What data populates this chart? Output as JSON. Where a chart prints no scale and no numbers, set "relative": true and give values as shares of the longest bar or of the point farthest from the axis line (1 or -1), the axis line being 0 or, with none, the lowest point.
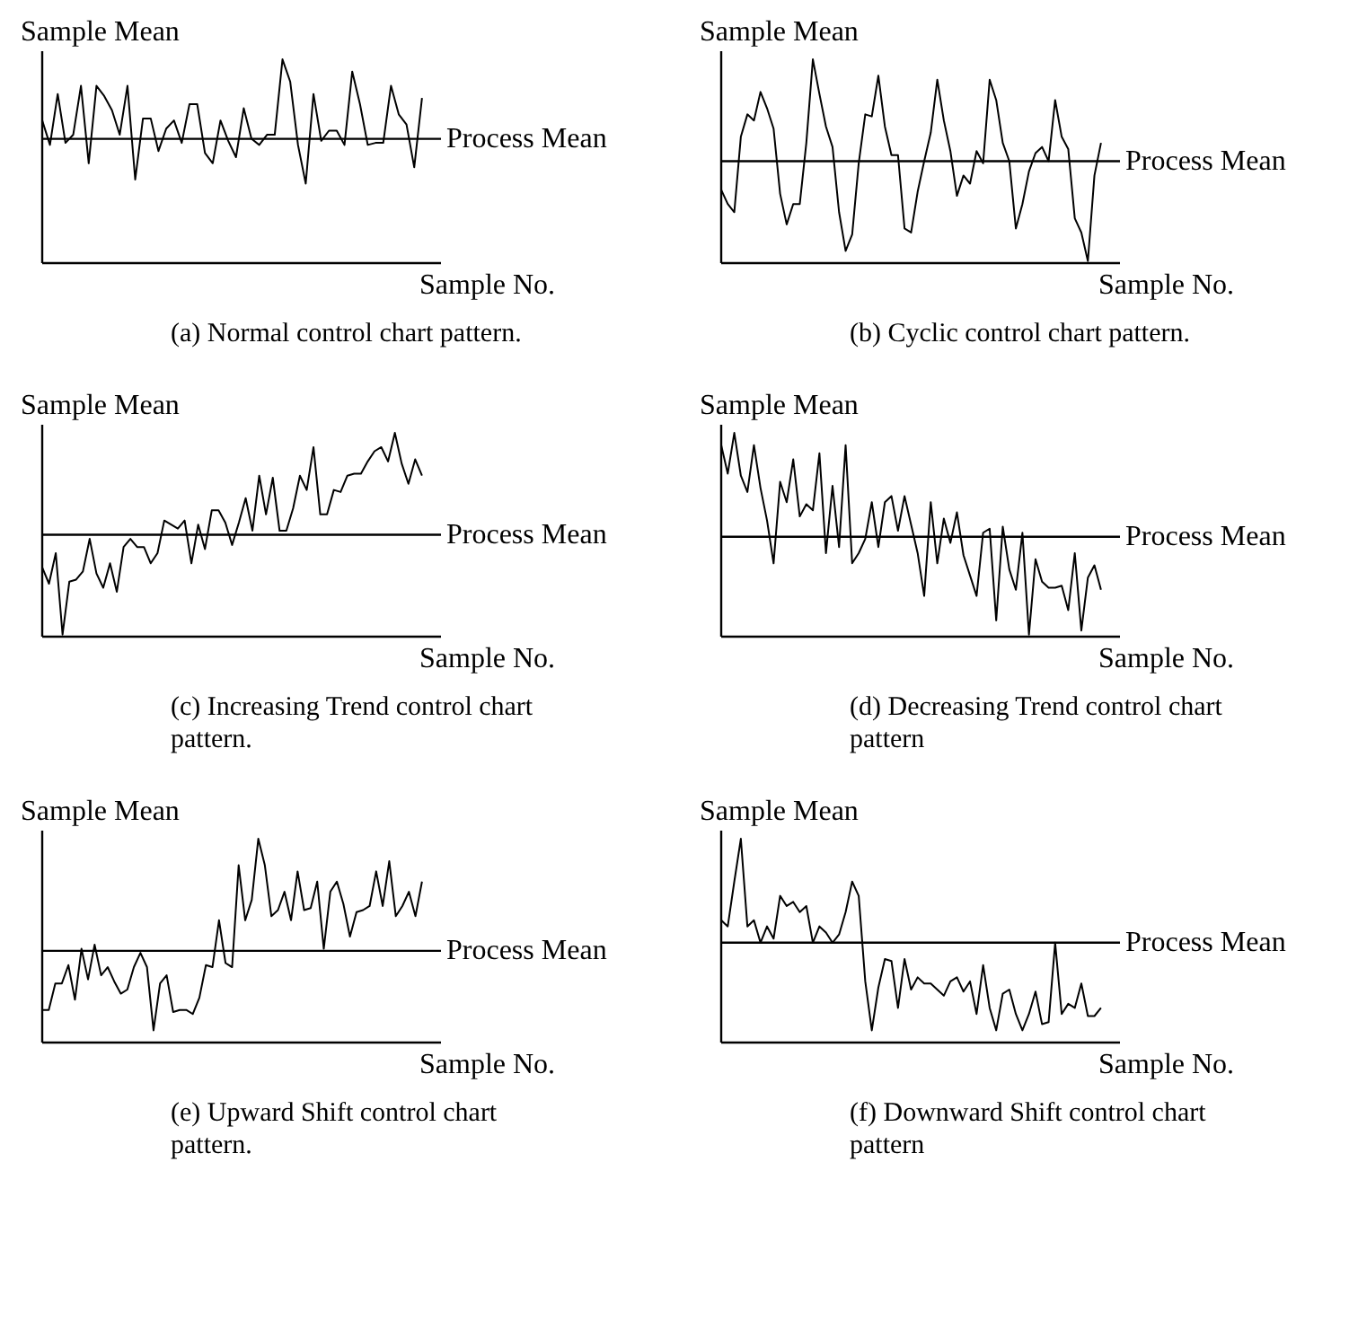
{
  "chart_data": [
    {
      "type": "line",
      "relative": true,
      "ylabel": "Sample Mean",
      "xlabel": "Sample No.",
      "annotations": [
        "(a) Normal control chart pattern."
      ],
      "categories": [
        null,
        null,
        null,
        null,
        null,
        null,
        null,
        null,
        null,
        null,
        null,
        null,
        null,
        null,
        null,
        null,
        null,
        null,
        null,
        null,
        null,
        null,
        null,
        null,
        null,
        null,
        null,
        null,
        null,
        null,
        null,
        null,
        null,
        null,
        null,
        null,
        null,
        null,
        null,
        null,
        null,
        null,
        null,
        null,
        null,
        null,
        null,
        null,
        null,
        null
      ],
      "series": [
        {
          "color": "#000000",
          "values": [
            0.7,
            0.58,
            0.83,
            0.59,
            0.63,
            0.87,
            0.49,
            0.87,
            0.82,
            0.75,
            0.63,
            0.87,
            0.41,
            0.71,
            0.71,
            0.55,
            0.66,
            0.7,
            0.59,
            0.78,
            0.78,
            0.54,
            0.49,
            0.7,
            0.6,
            0.52,
            0.76,
            0.61,
            0.58,
            0.63,
            0.63,
            1.0,
            0.89,
            0.58,
            0.39,
            0.83,
            0.6,
            0.65,
            0.65,
            0.58,
            0.94,
            0.78,
            0.58,
            0.59,
            0.59,
            0.87,
            0.73,
            0.68,
            0.47,
            0.81
          ]
        }
      ],
      "ref_lines": [
        {
          "axis": "y",
          "value": 0.61,
          "label": "Process Mean"
        }
      ]
    },
    {
      "type": "line",
      "relative": true,
      "ylabel": "Sample Mean",
      "xlabel": "Sample No.",
      "annotations": [
        "(b) Cyclic control chart pattern."
      ],
      "categories": [
        null,
        null,
        null,
        null,
        null,
        null,
        null,
        null,
        null,
        null,
        null,
        null,
        null,
        null,
        null,
        null,
        null,
        null,
        null,
        null,
        null,
        null,
        null,
        null,
        null,
        null,
        null,
        null,
        null,
        null,
        null,
        null,
        null,
        null,
        null,
        null,
        null,
        null,
        null,
        null,
        null,
        null,
        null,
        null,
        null,
        null,
        null,
        null,
        null,
        null,
        null,
        null,
        null,
        null,
        null,
        null,
        null,
        null,
        null
      ],
      "series": [
        {
          "color": "#000000",
          "values": [
            0.36,
            0.29,
            0.25,
            0.62,
            0.73,
            0.7,
            0.84,
            0.76,
            0.66,
            0.34,
            0.19,
            0.29,
            0.29,
            0.59,
            1.0,
            0.83,
            0.67,
            0.57,
            0.25,
            0.06,
            0.14,
            0.49,
            0.73,
            0.72,
            0.92,
            0.67,
            0.53,
            0.53,
            0.17,
            0.15,
            0.35,
            0.5,
            0.64,
            0.9,
            0.7,
            0.55,
            0.33,
            0.43,
            0.39,
            0.55,
            0.49,
            0.9,
            0.8,
            0.59,
            0.5,
            0.17,
            0.29,
            0.45,
            0.54,
            0.57,
            0.5,
            0.8,
            0.62,
            0.56,
            0.22,
            0.15,
            0.01,
            0.43,
            0.59
          ]
        }
      ],
      "ref_lines": [
        {
          "axis": "y",
          "value": 0.5,
          "label": "Process Mean"
        }
      ]
    },
    {
      "type": "line",
      "relative": true,
      "ylabel": "Sample Mean",
      "xlabel": "Sample No.",
      "annotations": [
        "(c) Increasing Trend control chart pattern."
      ],
      "categories": [
        null,
        null,
        null,
        null,
        null,
        null,
        null,
        null,
        null,
        null,
        null,
        null,
        null,
        null,
        null,
        null,
        null,
        null,
        null,
        null,
        null,
        null,
        null,
        null,
        null,
        null,
        null,
        null,
        null,
        null,
        null,
        null,
        null,
        null,
        null,
        null,
        null,
        null,
        null,
        null,
        null,
        null,
        null,
        null,
        null,
        null,
        null,
        null,
        null,
        null,
        null,
        null,
        null,
        null,
        null,
        null,
        null
      ],
      "series": [
        {
          "color": "#000000",
          "values": [
            0.34,
            0.26,
            0.41,
            0.01,
            0.27,
            0.28,
            0.32,
            0.48,
            0.31,
            0.24,
            0.36,
            0.22,
            0.44,
            0.48,
            0.44,
            0.44,
            0.36,
            0.41,
            0.57,
            0.55,
            0.53,
            0.57,
            0.36,
            0.55,
            0.43,
            0.62,
            0.62,
            0.56,
            0.45,
            0.56,
            0.68,
            0.52,
            0.79,
            0.6,
            0.78,
            0.52,
            0.52,
            0.63,
            0.79,
            0.72,
            0.93,
            0.6,
            0.6,
            0.72,
            0.71,
            0.79,
            0.8,
            0.8,
            0.86,
            0.91,
            0.93,
            0.86,
            1.0,
            0.85,
            0.75,
            0.87,
            0.79
          ]
        }
      ],
      "ref_lines": [
        {
          "axis": "y",
          "value": 0.5,
          "label": "Process Mean"
        }
      ]
    },
    {
      "type": "line",
      "relative": true,
      "ylabel": "Sample Mean",
      "xlabel": "Sample No.",
      "annotations": [
        "(d) Decreasing Trend control chart pattern"
      ],
      "categories": [
        null,
        null,
        null,
        null,
        null,
        null,
        null,
        null,
        null,
        null,
        null,
        null,
        null,
        null,
        null,
        null,
        null,
        null,
        null,
        null,
        null,
        null,
        null,
        null,
        null,
        null,
        null,
        null,
        null,
        null,
        null,
        null,
        null,
        null,
        null,
        null,
        null,
        null,
        null,
        null,
        null,
        null,
        null,
        null,
        null,
        null,
        null,
        null,
        null,
        null,
        null,
        null,
        null,
        null,
        null,
        null,
        null,
        null,
        null
      ],
      "series": [
        {
          "color": "#000000",
          "values": [
            0.94,
            0.8,
            1.0,
            0.79,
            0.71,
            0.94,
            0.73,
            0.57,
            0.36,
            0.76,
            0.66,
            0.87,
            0.59,
            0.65,
            0.62,
            0.9,
            0.41,
            0.74,
            0.44,
            0.94,
            0.36,
            0.41,
            0.48,
            0.66,
            0.44,
            0.66,
            0.69,
            0.52,
            0.69,
            0.55,
            0.41,
            0.2,
            0.66,
            0.36,
            0.58,
            0.46,
            0.61,
            0.4,
            0.3,
            0.2,
            0.51,
            0.53,
            0.08,
            0.54,
            0.33,
            0.23,
            0.51,
            0.01,
            0.38,
            0.27,
            0.24,
            0.24,
            0.25,
            0.13,
            0.41,
            0.03,
            0.29,
            0.35,
            0.23
          ]
        }
      ],
      "ref_lines": [
        {
          "axis": "y",
          "value": 0.49,
          "label": "Process Mean"
        }
      ]
    },
    {
      "type": "line",
      "relative": true,
      "ylabel": "Sample Mean",
      "xlabel": "Sample No.",
      "annotations": [
        "(e) Upward Shift control chart pattern."
      ],
      "categories": [
        null,
        null,
        null,
        null,
        null,
        null,
        null,
        null,
        null,
        null,
        null,
        null,
        null,
        null,
        null,
        null,
        null,
        null,
        null,
        null,
        null,
        null,
        null,
        null,
        null,
        null,
        null,
        null,
        null,
        null,
        null,
        null,
        null,
        null,
        null,
        null,
        null,
        null,
        null,
        null,
        null,
        null,
        null,
        null,
        null,
        null,
        null,
        null,
        null,
        null,
        null,
        null,
        null,
        null,
        null,
        null,
        null,
        null,
        null
      ],
      "series": [
        {
          "color": "#000000",
          "values": [
            0.16,
            0.16,
            0.29,
            0.29,
            0.38,
            0.21,
            0.46,
            0.31,
            0.48,
            0.33,
            0.37,
            0.3,
            0.24,
            0.26,
            0.37,
            0.44,
            0.37,
            0.06,
            0.29,
            0.33,
            0.15,
            0.16,
            0.16,
            0.14,
            0.22,
            0.38,
            0.37,
            0.6,
            0.39,
            0.37,
            0.87,
            0.6,
            0.7,
            1.0,
            0.87,
            0.62,
            0.65,
            0.74,
            0.6,
            0.84,
            0.65,
            0.66,
            0.79,
            0.46,
            0.74,
            0.79,
            0.68,
            0.52,
            0.64,
            0.65,
            0.67,
            0.84,
            0.67,
            0.89,
            0.62,
            0.67,
            0.74,
            0.62,
            0.79
          ]
        }
      ],
      "ref_lines": [
        {
          "axis": "y",
          "value": 0.45,
          "label": "Process Mean"
        }
      ]
    },
    {
      "type": "line",
      "relative": true,
      "ylabel": "Sample Mean",
      "xlabel": "Sample No.",
      "annotations": [
        "(f) Downward Shift control chart pattern"
      ],
      "categories": [
        null,
        null,
        null,
        null,
        null,
        null,
        null,
        null,
        null,
        null,
        null,
        null,
        null,
        null,
        null,
        null,
        null,
        null,
        null,
        null,
        null,
        null,
        null,
        null,
        null,
        null,
        null,
        null,
        null,
        null,
        null,
        null,
        null,
        null,
        null,
        null,
        null,
        null,
        null,
        null,
        null,
        null,
        null,
        null,
        null,
        null,
        null,
        null,
        null,
        null,
        null,
        null,
        null,
        null,
        null,
        null,
        null,
        null,
        null
      ],
      "series": [
        {
          "color": "#000000",
          "values": [
            0.6,
            0.57,
            0.79,
            1.0,
            0.57,
            0.6,
            0.49,
            0.57,
            0.51,
            0.72,
            0.67,
            0.69,
            0.64,
            0.67,
            0.49,
            0.57,
            0.54,
            0.49,
            0.53,
            0.64,
            0.79,
            0.72,
            0.3,
            0.06,
            0.27,
            0.41,
            0.4,
            0.17,
            0.41,
            0.26,
            0.32,
            0.29,
            0.29,
            0.26,
            0.23,
            0.3,
            0.32,
            0.25,
            0.3,
            0.14,
            0.38,
            0.17,
            0.06,
            0.24,
            0.26,
            0.14,
            0.06,
            0.14,
            0.25,
            0.09,
            0.1,
            0.49,
            0.14,
            0.19,
            0.17,
            0.29,
            0.13,
            0.13,
            0.17
          ]
        }
      ],
      "ref_lines": [
        {
          "axis": "y",
          "value": 0.49,
          "label": "Process Mean"
        }
      ]
    }
  ]
}
